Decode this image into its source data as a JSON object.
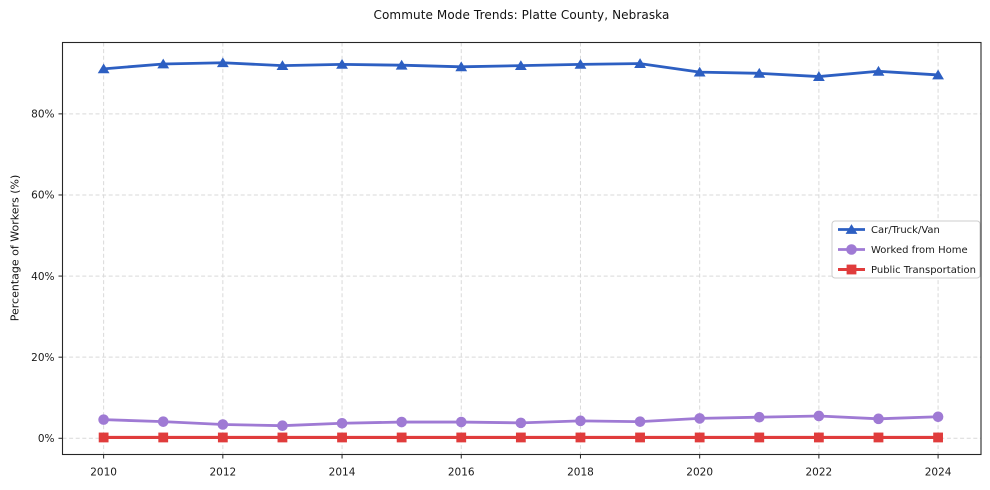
{
  "figure": {
    "background": "#ffffff",
    "axis_border_color": "#262626",
    "grid_color": "#d9d9d9",
    "tick_label_color": "#1a1a1a",
    "legend_border_color": "#cccccc",
    "legend_background": "#ffffff"
  },
  "chart_data": {
    "type": "line",
    "title": "Commute Mode Trends: Platte County, Nebraska",
    "xlabel": "",
    "ylabel": "Percentage of Workers (%)",
    "grid": true,
    "grid_style": "dashed",
    "legend_position": "center right",
    "x": [
      2010,
      2011,
      2012,
      2013,
      2014,
      2015,
      2016,
      2017,
      2018,
      2019,
      2020,
      2021,
      2022,
      2023,
      2024
    ],
    "x_ticks": [
      2010,
      2012,
      2014,
      2016,
      2018,
      2020,
      2022,
      2024
    ],
    "x_tick_labels": [
      "2010",
      "2012",
      "2014",
      "2016",
      "2018",
      "2020",
      "2022",
      "2024"
    ],
    "xlim": [
      2009.31,
      2024.72
    ],
    "y_ticks": [
      0,
      20,
      40,
      60,
      80
    ],
    "y_tick_labels": [
      "0%",
      "20%",
      "40%",
      "60%",
      "80%"
    ],
    "ylim": [
      -4.0,
      97.6
    ],
    "series": [
      {
        "name": "Car/Truck/Van",
        "color": "#2d5fc2",
        "marker": "triangle",
        "values": [
          91.1,
          92.3,
          92.6,
          91.9,
          92.2,
          92.0,
          91.6,
          91.9,
          92.2,
          92.4,
          90.3,
          90.0,
          89.2,
          90.5,
          89.6
        ]
      },
      {
        "name": "Worked from Home",
        "color": "#9f7ad4",
        "marker": "circle",
        "values": [
          4.6,
          4.1,
          3.4,
          3.1,
          3.7,
          4.0,
          4.0,
          3.8,
          4.3,
          4.1,
          4.9,
          5.2,
          5.5,
          4.8,
          5.3
        ]
      },
      {
        "name": "Public Transportation",
        "color": "#e03c3c",
        "marker": "square",
        "values": [
          0.2,
          0.2,
          0.2,
          0.2,
          0.2,
          0.2,
          0.2,
          0.2,
          0.2,
          0.2,
          0.2,
          0.2,
          0.2,
          0.2,
          0.2
        ]
      }
    ]
  }
}
